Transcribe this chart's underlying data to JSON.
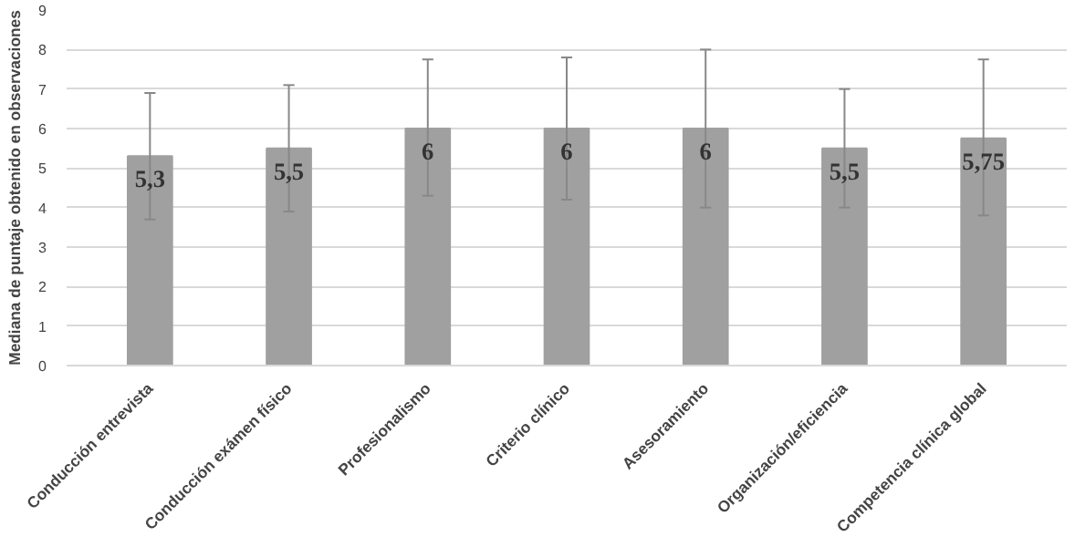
{
  "chart_data": {
    "type": "bar",
    "ylabel": "Mediana de puntaje obtenido en observaciones",
    "categories": [
      "Conducción entrevista",
      "Conducción exámen físico",
      "Profesionalismo",
      "Criterio clínico",
      "Asesoramiento",
      "Organización/eficiencia",
      "Competencia clínica global"
    ],
    "values": [
      5.3,
      5.5,
      6,
      6,
      6,
      5.5,
      5.75
    ],
    "value_labels": [
      "5,3",
      "5,5",
      "6",
      "6",
      "6",
      "5,5",
      "5,75"
    ],
    "errors": [
      [
        3.7,
        6.9
      ],
      [
        3.9,
        7.1
      ],
      [
        4.3,
        7.75
      ],
      [
        4.2,
        7.8
      ],
      [
        4.0,
        8.0
      ],
      [
        4.0,
        7.0
      ],
      [
        3.8,
        7.75
      ]
    ],
    "color": "#a0a0a0",
    "ylim": [
      0,
      9
    ],
    "yticks": [
      0,
      1,
      2,
      3,
      4,
      5,
      6,
      7,
      8,
      9
    ],
    "grid": "y"
  }
}
